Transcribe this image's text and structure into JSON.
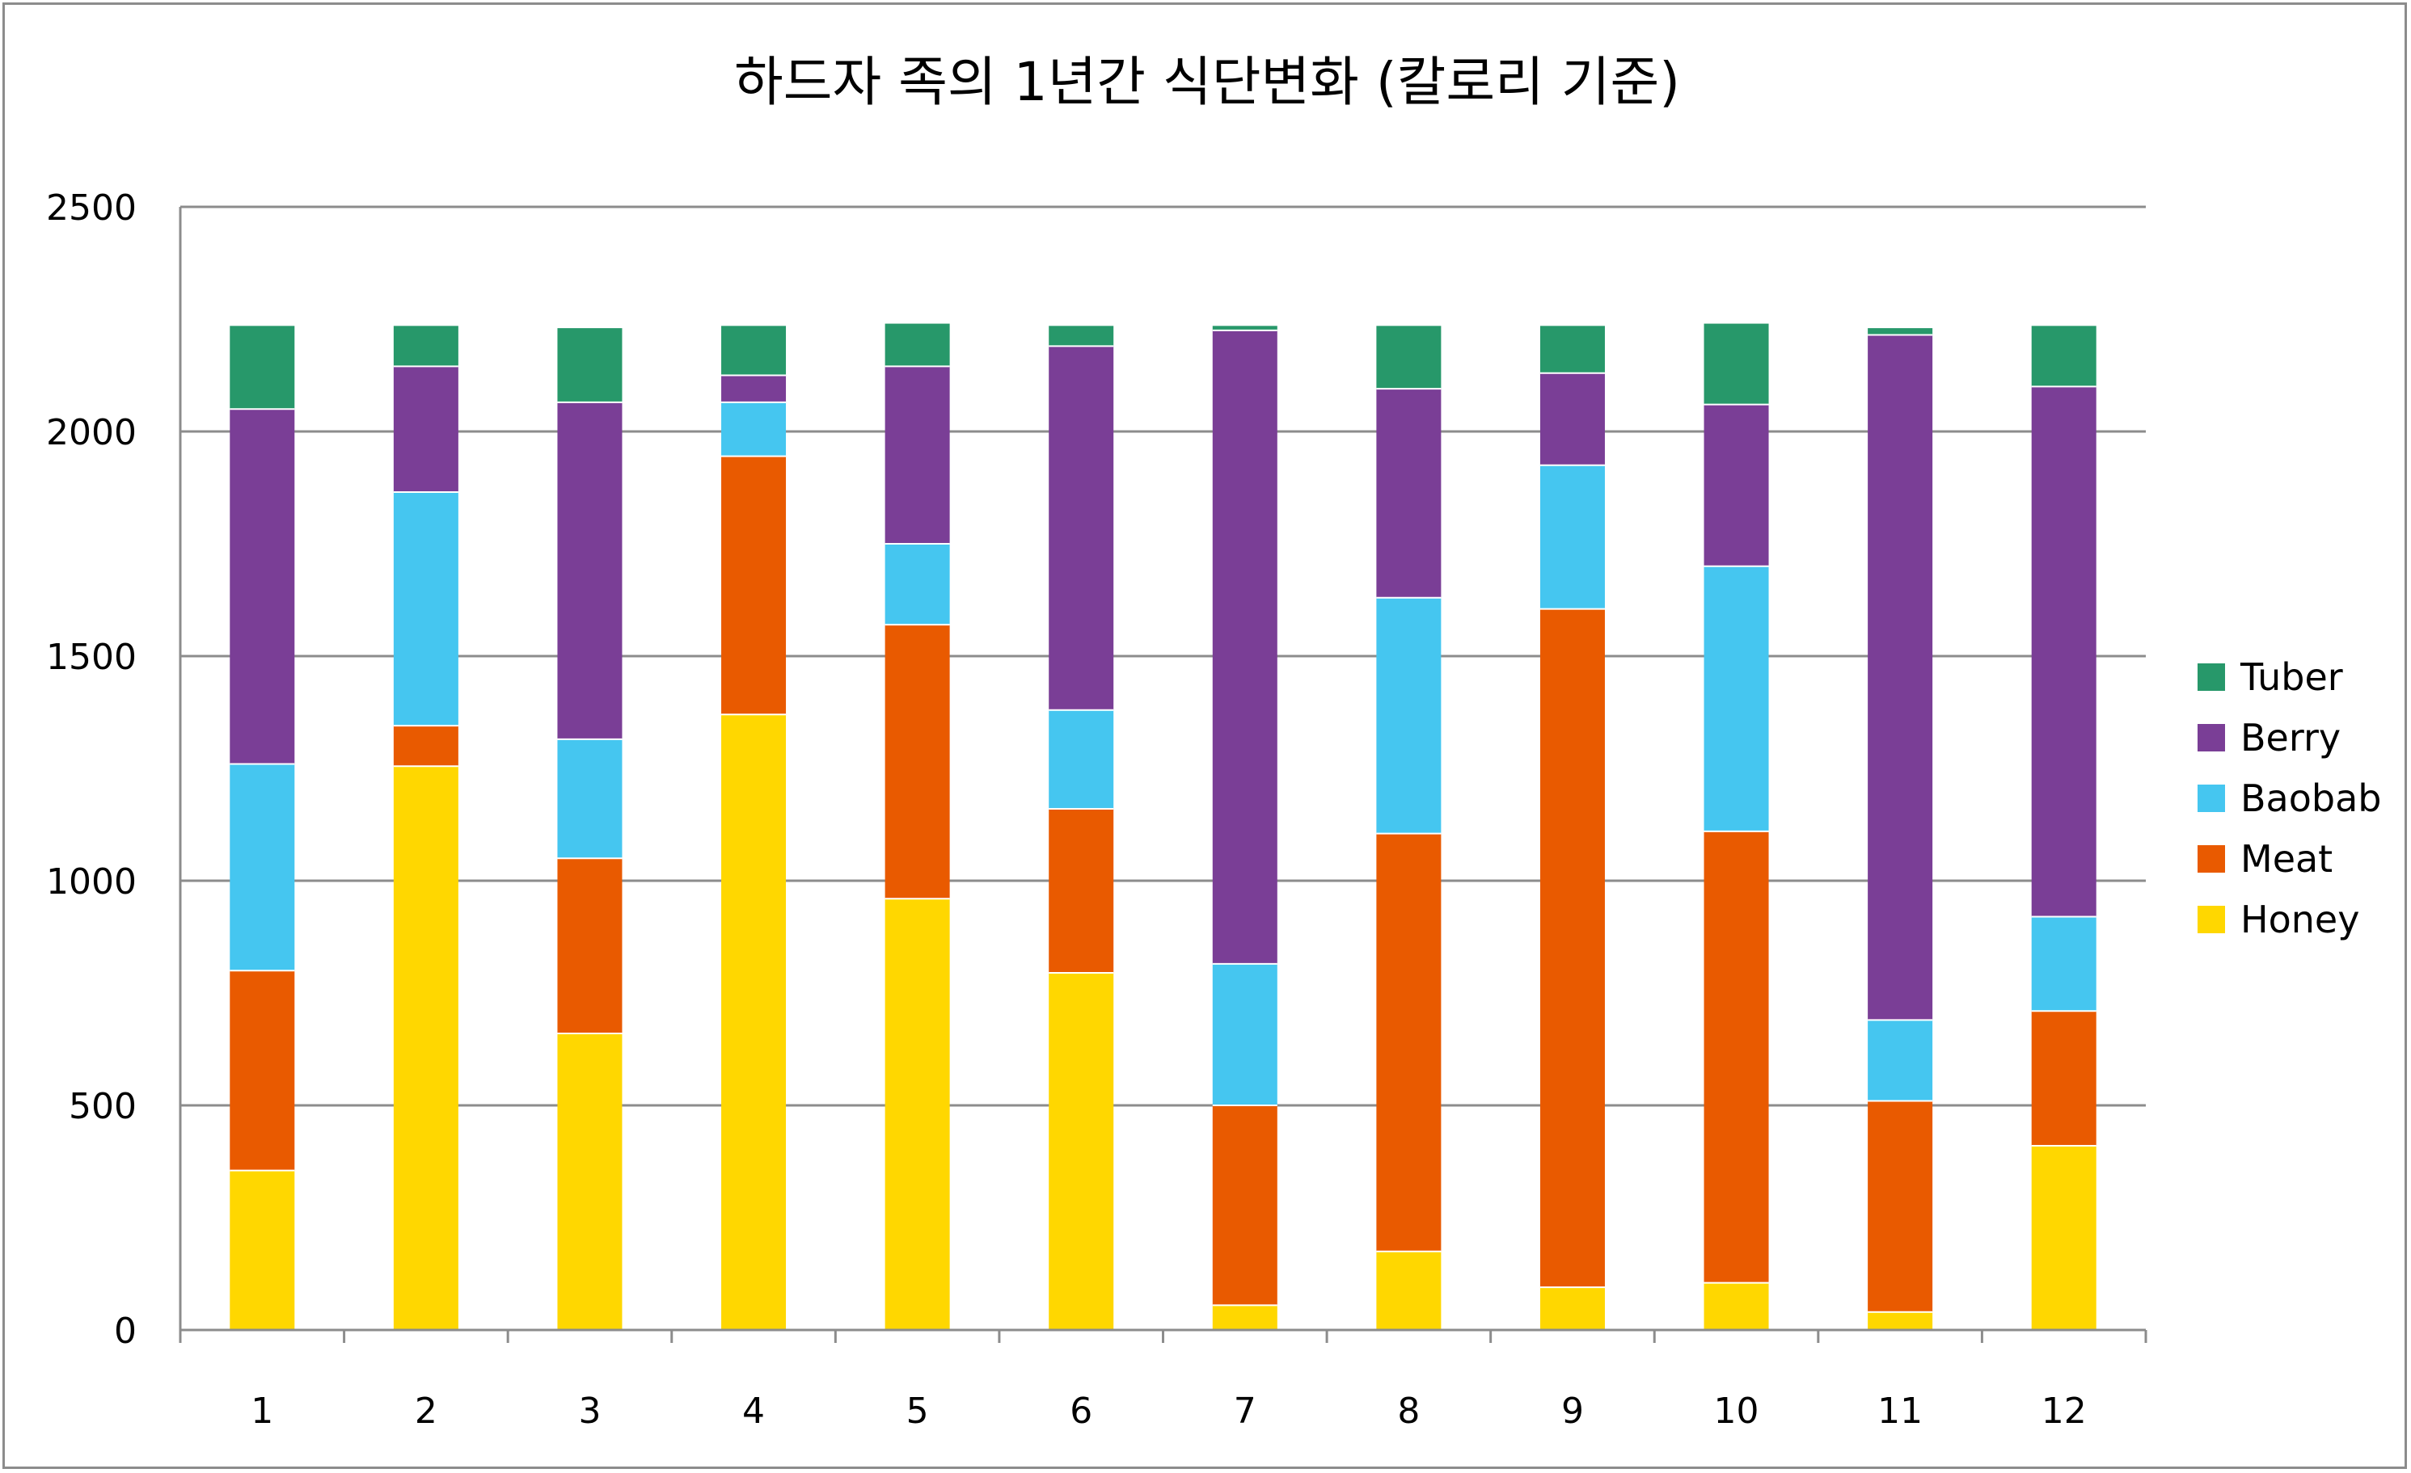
{
  "chart_data": {
    "type": "bar",
    "stacked": true,
    "title": "하드자 족의 1년간 식단변화 (칼로리 기준)",
    "xlabel": "",
    "ylabel": "",
    "categories": [
      "1",
      "2",
      "3",
      "4",
      "5",
      "6",
      "7",
      "8",
      "9",
      "10",
      "11",
      "12"
    ],
    "ylim": [
      0,
      2500
    ],
    "yticks": [
      "0",
      "500",
      "1000",
      "1500",
      "2000",
      "2500"
    ],
    "grid": true,
    "legend_position": "right",
    "series": [
      {
        "name": "Honey",
        "color": "#FFD700",
        "values": [
          355,
          1255,
          660,
          1370,
          960,
          795,
          55,
          175,
          95,
          105,
          40,
          410
        ]
      },
      {
        "name": "Meat",
        "color": "#E95A00",
        "values": [
          445,
          90,
          390,
          575,
          610,
          365,
          445,
          930,
          1510,
          1005,
          470,
          300
        ]
      },
      {
        "name": "Baobab",
        "color": "#45C6F0",
        "values": [
          460,
          520,
          265,
          120,
          180,
          220,
          315,
          525,
          320,
          590,
          180,
          210
        ]
      },
      {
        "name": "Berry",
        "color": "#7A3E96",
        "values": [
          790,
          280,
          750,
          60,
          395,
          810,
          1410,
          465,
          205,
          360,
          1525,
          1180
        ]
      },
      {
        "name": "Tuber",
        "color": "#27986A",
        "values": [
          185,
          90,
          165,
          110,
          95,
          45,
          10,
          140,
          105,
          180,
          15,
          135
        ]
      }
    ]
  }
}
